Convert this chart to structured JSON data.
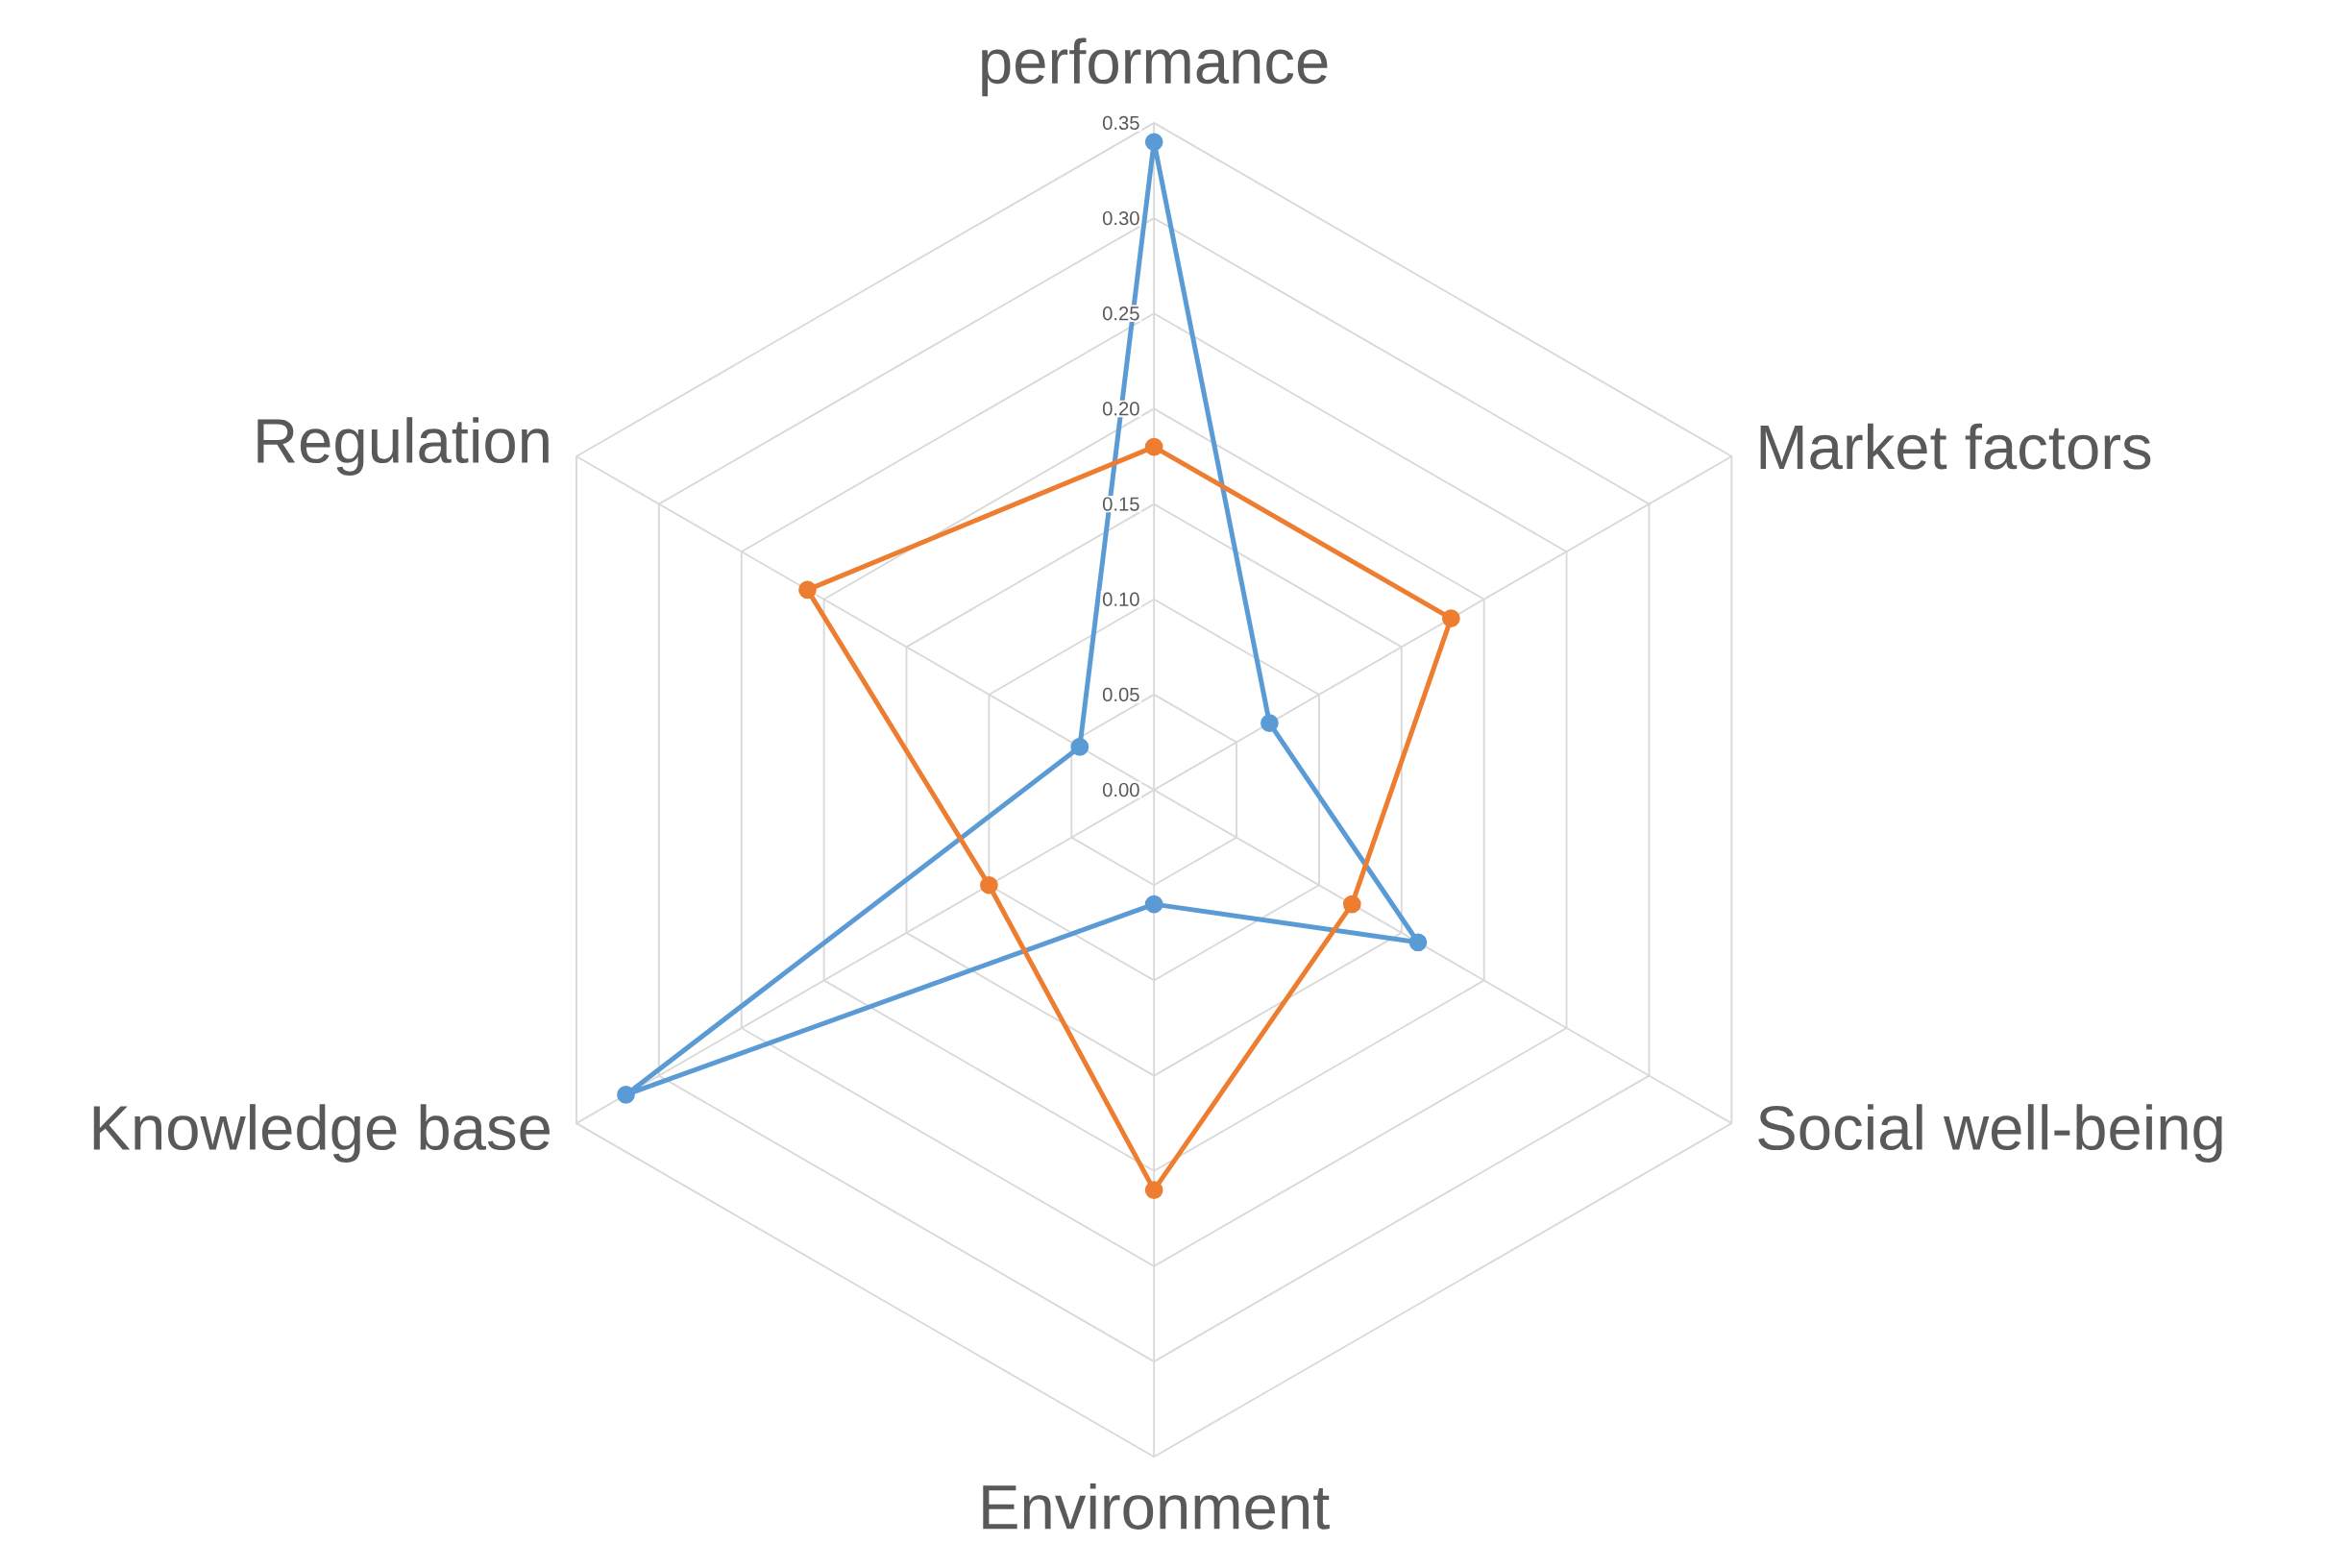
{
  "chart_data": {
    "type": "radar",
    "categories": [
      "performance",
      "Market factors",
      "Social well-being",
      "Environment",
      "Knowledge base",
      "Regulation"
    ],
    "series": [
      {
        "color": "#5b9bd5",
        "values": [
          0.34,
          0.07,
          0.16,
          0.06,
          0.32,
          0.045
        ]
      },
      {
        "color": "#ed7d31",
        "values": [
          0.18,
          0.18,
          0.12,
          0.21,
          0.1,
          0.21
        ]
      }
    ],
    "ylim": [
      0,
      0.35
    ],
    "yticks": [
      {
        "value": 0,
        "label": "0.00"
      },
      {
        "value": 0.05,
        "label": "0.05"
      },
      {
        "value": 0.1,
        "label": "0.10"
      },
      {
        "value": 0.15,
        "label": "0.15"
      },
      {
        "value": 0.2,
        "label": "0.20"
      },
      {
        "value": 0.25,
        "label": "0.25"
      },
      {
        "value": 0.3,
        "label": "0.30"
      },
      {
        "value": 0.35,
        "label": "0.35"
      }
    ],
    "grid": true,
    "marker": "circle",
    "line_style": "solid"
  }
}
